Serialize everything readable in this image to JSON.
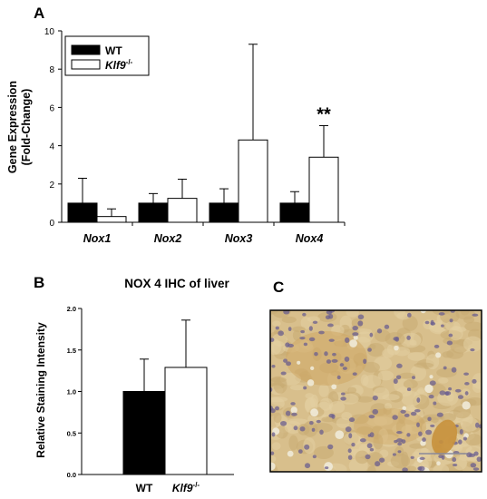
{
  "panels": {
    "a": "A",
    "b": "B",
    "c": "C"
  },
  "chart_data": [
    {
      "type": "bar",
      "panel": "A",
      "title": "",
      "ylabel_line1": "Gene Expression",
      "ylabel_line2": "(Fold-Change)",
      "xlabel": "",
      "ylim": [
        0,
        10
      ],
      "yticks": [
        0,
        2,
        4,
        6,
        8,
        10
      ],
      "categories": [
        "Nox1",
        "Nox2",
        "Nox3",
        "Nox4"
      ],
      "series": [
        {
          "name": "WT",
          "name_sup": "",
          "color": "#000000",
          "values": [
            1.0,
            1.0,
            1.0,
            1.0
          ],
          "errors": [
            1.3,
            0.5,
            0.75,
            0.6
          ]
        },
        {
          "name": "Klf9",
          "name_sup": "-/-",
          "color": "#ffffff",
          "values": [
            0.3,
            1.25,
            4.3,
            3.4
          ],
          "errors": [
            0.4,
            1.0,
            5.0,
            1.65
          ]
        }
      ],
      "annotations": [
        {
          "category": "Nox4",
          "text": "**"
        }
      ],
      "legend": "top-left",
      "grid": false
    },
    {
      "type": "bar",
      "panel": "B",
      "title": "NOX 4 IHC of liver",
      "ylabel": "Relative Staining Intensity",
      "xlabel": "",
      "ylim": [
        0,
        2.0
      ],
      "yticks": [
        "0.0",
        "0.5",
        "1.0",
        "1.5",
        "2.0"
      ],
      "categories": [
        {
          "label": "WT",
          "sup": ""
        },
        {
          "label": "Klf9",
          "sup": "-/-"
        }
      ],
      "values": [
        1.0,
        1.29
      ],
      "errors": [
        0.39,
        0.57
      ],
      "colors": [
        "#000000",
        "#ffffff"
      ],
      "grid": false
    }
  ],
  "micrograph": {
    "panel": "C",
    "background_color": "#d8bf8c",
    "nuclei_color": "#6b5f8f",
    "vessel_color": "#c8913c"
  }
}
